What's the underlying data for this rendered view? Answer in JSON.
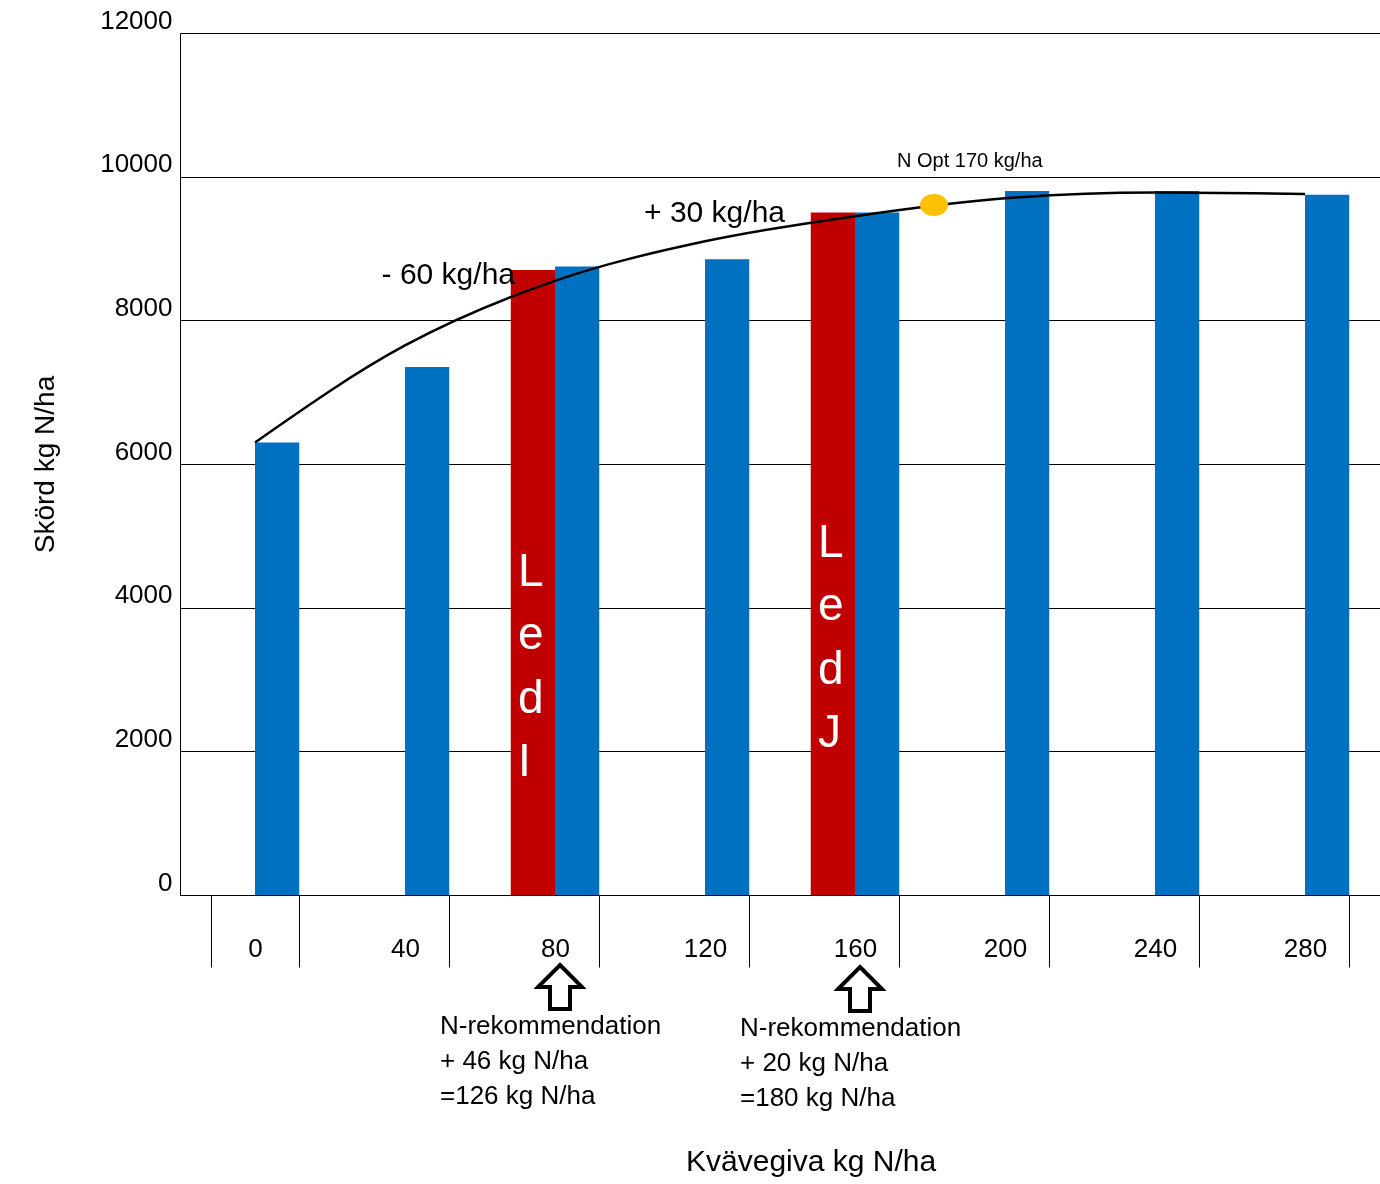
{
  "chart_data": {
    "type": "bar",
    "ylabel": "Skörd kg N/ha",
    "categories": [
      "0",
      "40",
      "80",
      "120",
      "160",
      "200",
      "240",
      "280"
    ],
    "series": [
      {
        "color": "#c00000",
        "values": [
          null,
          null,
          8700,
          null,
          9500,
          null,
          null,
          null
        ]
      },
      {
        "color": "#0070c0",
        "values": [
          6300,
          7350,
          8750,
          8850,
          9500,
          9800,
          9800,
          9750
        ]
      },
      {
        "type": "line",
        "color": "#000000",
        "values": [
          6300,
          7650,
          8550,
          9100,
          9450,
          9700,
          9780,
          9760
        ]
      }
    ],
    "ylim": [
      0,
      12000
    ],
    "yticks": [
      0,
      2000,
      4000,
      6000,
      8000,
      10000,
      12000
    ],
    "grid": "y",
    "annotations": [
      {
        "text": "- 60 kg/ha",
        "x": "80",
        "y": 8700
      },
      {
        "text": "+ 30 kg/ha",
        "x": "160",
        "y": 9500
      },
      "N Opt 170 kg/ha",
      {
        "text": "Led I",
        "x": "80",
        "y": 4500
      },
      {
        "text": "Led J",
        "x": "160",
        "y": 4900
      },
      "N-rekommendation\n+ 46 kg N/ha\n=126 kg N/ha",
      "N-rekommendation\n+ 20 kg N/ha\n=180 kg N/ha",
      "Kvävegiva kg N/ha"
    ]
  }
}
